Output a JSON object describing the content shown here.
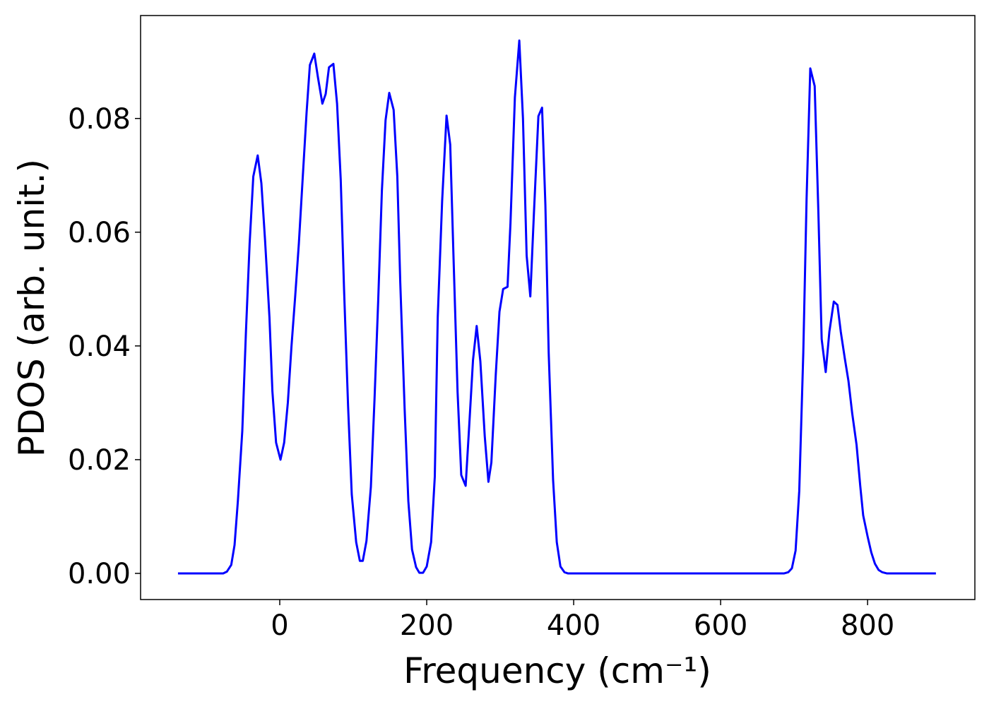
{
  "chart_data": {
    "type": "line",
    "x_label": "Frequency (cm⁻¹)",
    "y_label": "PDOS (arb. unit.)",
    "color": "#0000ff",
    "x": [
      -138.5,
      -77,
      -72,
      -66,
      -61.5,
      -57,
      -51,
      -46,
      -41,
      -36,
      -30,
      -25,
      -20,
      -14,
      -10,
      -5,
      1,
      6,
      11,
      16,
      21,
      26,
      31,
      36.5,
      41,
      47,
      52,
      58,
      62.5,
      67,
      73,
      78,
      83,
      87.5,
      93,
      98,
      104,
      109,
      113,
      118,
      124,
      129,
      134,
      139,
      144,
      149,
      155,
      160,
      164,
      170,
      175,
      180,
      185.5,
      190,
      195,
      200,
      206,
      211,
      215,
      221,
      227,
      232,
      236.5,
      242,
      247,
      253,
      258,
      263,
      268,
      273,
      279,
      284,
      288,
      294,
      299,
      304,
      310,
      314,
      320,
      326,
      331,
      336,
      341,
      346,
      352,
      357,
      361.5,
      366,
      372,
      377,
      382,
      387.5,
      392,
      686.5,
      692,
      697,
      702,
      707,
      712.5,
      717,
      722,
      728,
      733,
      737.5,
      743,
      748,
      754,
      759,
      763.5,
      769,
      774,
      779,
      785,
      790,
      794,
      800,
      805,
      810,
      815,
      820,
      826,
      893
    ],
    "values": [
      0,
      0,
      0.0003,
      0.0015,
      0.005,
      0.0127,
      0.025,
      0.0425,
      0.058,
      0.0698,
      0.0735,
      0.0686,
      0.0586,
      0.045,
      0.032,
      0.023,
      0.02,
      0.023,
      0.03,
      0.04,
      0.0487,
      0.058,
      0.069,
      0.081,
      0.0894,
      0.0914,
      0.0872,
      0.0826,
      0.0843,
      0.089,
      0.0896,
      0.0826,
      0.0692,
      0.05,
      0.0294,
      0.0139,
      0.0055,
      0.0022,
      0.0022,
      0.0057,
      0.0152,
      0.0307,
      0.048,
      0.0673,
      0.0797,
      0.0845,
      0.0815,
      0.0698,
      0.0512,
      0.0288,
      0.0127,
      0.0042,
      0.0011,
      0.0001,
      0.0001,
      0.0012,
      0.0055,
      0.017,
      0.045,
      0.0655,
      0.0805,
      0.0754,
      0.0555,
      0.0319,
      0.0173,
      0.0154,
      0.0263,
      0.0375,
      0.0435,
      0.0373,
      0.0241,
      0.0161,
      0.0195,
      0.035,
      0.046,
      0.05,
      0.0504,
      0.0616,
      0.0837,
      0.0937,
      0.08,
      0.0559,
      0.0487,
      0.0636,
      0.0804,
      0.0819,
      0.0648,
      0.0388,
      0.0164,
      0.0055,
      0.0012,
      0.0002,
      0,
      0,
      0.0002,
      0.0009,
      0.004,
      0.0145,
      0.0388,
      0.066,
      0.0888,
      0.0857,
      0.0636,
      0.0412,
      0.0354,
      0.0425,
      0.0478,
      0.0472,
      0.0425,
      0.0378,
      0.0338,
      0.0282,
      0.0226,
      0.0154,
      0.0102,
      0.0065,
      0.0037,
      0.0017,
      0.0006,
      0.0002,
      0,
      0
    ],
    "xlim": [
      -189.4,
      946
    ],
    "xticks": [
      0,
      200,
      400,
      600,
      800
    ],
    "ylim": [
      -0.0046,
      0.0981
    ],
    "yticks": [
      {
        "value": 0,
        "label": "0.00"
      },
      0.02,
      0.04,
      0.06,
      0.08
    ],
    "grid": false
  }
}
